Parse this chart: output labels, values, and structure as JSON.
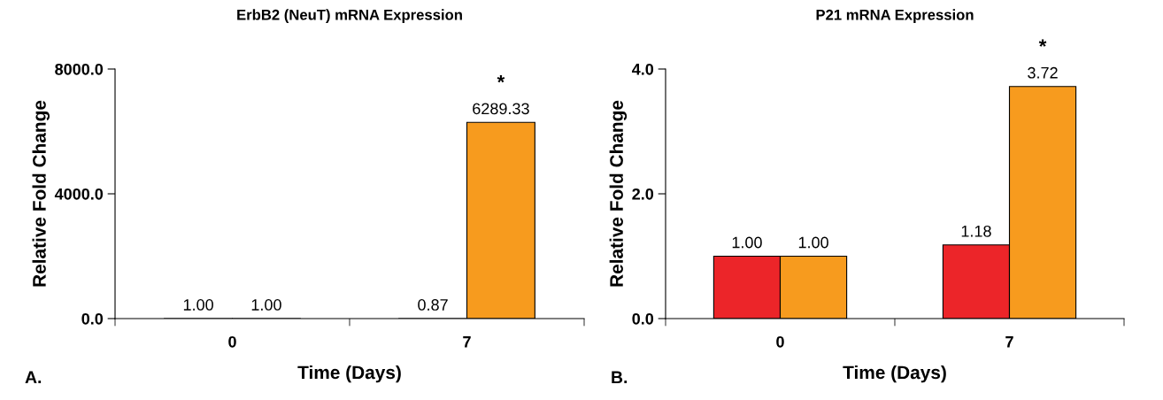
{
  "chart_data": [
    {
      "type": "bar",
      "title": "ErbB2 (NeuT) mRNA Expression",
      "xlabel": "Time (Days)",
      "ylabel": "Relative Fold Change",
      "categories": [
        "0",
        "7"
      ],
      "series": [
        {
          "color": "#ec2529",
          "values": [
            1.0,
            0.87
          ],
          "value_labels": [
            "1.00",
            "0.87"
          ]
        },
        {
          "color": "#f79b1e",
          "values": [
            1.0,
            6289.33
          ],
          "value_labels": [
            "1.00",
            "6289.33"
          ]
        }
      ],
      "ylim": [
        0,
        8000
      ],
      "yticks": [
        {
          "value": 0,
          "label": "0.0"
        },
        {
          "value": 4000,
          "label": "4000.0"
        },
        {
          "value": 8000,
          "label": "8000.0"
        }
      ],
      "grid": false,
      "legend": false,
      "annotations": [
        {
          "text": "*",
          "x": "7",
          "y": 6289.33
        },
        "A."
      ]
    },
    {
      "type": "bar",
      "title": "P21 mRNA Expression",
      "xlabel": "Time (Days)",
      "ylabel": "Relative Fold Change",
      "categories": [
        "0",
        "7"
      ],
      "series": [
        {
          "color": "#ec2529",
          "values": [
            1.0,
            1.18
          ],
          "value_labels": [
            "1.00",
            "1.18"
          ]
        },
        {
          "color": "#f79b1e",
          "values": [
            1.0,
            3.72
          ],
          "value_labels": [
            "1.00",
            "3.72"
          ]
        }
      ],
      "ylim": [
        0,
        4
      ],
      "yticks": [
        {
          "value": 0,
          "label": "0.0"
        },
        {
          "value": 2,
          "label": "2.0"
        },
        {
          "value": 4,
          "label": "4.0"
        }
      ],
      "grid": false,
      "legend": false,
      "annotations": [
        {
          "text": "*",
          "x": "7",
          "y": 3.72
        },
        "B."
      ]
    }
  ]
}
